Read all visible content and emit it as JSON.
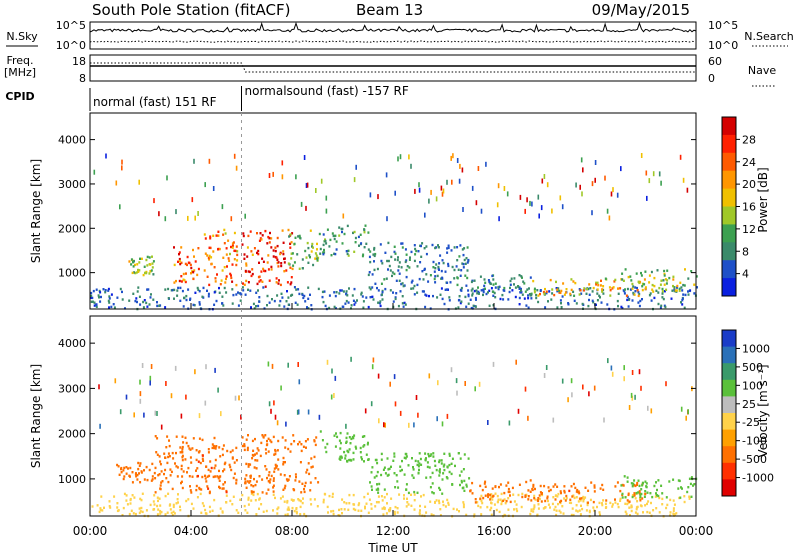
{
  "header": {
    "station": "South Pole Station (fitACF)",
    "beam": "Beam 13",
    "date": "09/May/2015"
  },
  "top_panels": {
    "nsky_label": "N.Sky",
    "nsearch_label": "N.Search",
    "noise_ticks": [
      "10^5",
      "10^0"
    ],
    "freq_label": "Freq.",
    "freq_unit": "[MHz]",
    "freq_ticks": [
      "18",
      "8"
    ],
    "nave_label": "Nave",
    "nave_ticks": [
      "60",
      "0"
    ],
    "cpid_label": "CPID",
    "cpid_segments": [
      {
        "text": "normal (fast) 151 RF",
        "start_hour": 0,
        "end_hour": 6
      },
      {
        "text": "normalsound (fast) -157 RF",
        "start_hour": 6,
        "end_hour": 24
      }
    ]
  },
  "colorbars": {
    "power": {
      "label": "Power [dB]",
      "ticks": [
        "28",
        "24",
        "20",
        "16",
        "12",
        "8",
        "4"
      ],
      "colors": [
        "#d40000",
        "#ff2000",
        "#ff5a00",
        "#ff9600",
        "#f0c000",
        "#a0c828",
        "#3ca050",
        "#3a8a6a",
        "#1e50c8",
        "#0a20e0"
      ]
    },
    "velocity": {
      "label": "Velocity [m s⁻¹]",
      "ticks": [
        "1000",
        "500",
        "100",
        "25",
        "-25",
        "-100",
        "-500",
        "-1000"
      ],
      "colors": [
        "#1a3cc8",
        "#2a70b8",
        "#3a9a6a",
        "#5ac03a",
        "#bdbdbd",
        "#ffd24a",
        "#ffa000",
        "#ff7000",
        "#ff3000",
        "#e00000"
      ]
    }
  },
  "x_axis": {
    "label": "Time UT",
    "ticks": [
      "00:00",
      "04:00",
      "08:00",
      "12:00",
      "16:00",
      "20:00",
      "00:00"
    ]
  },
  "chart_data": [
    {
      "type": "heatmap",
      "title": "Power",
      "ylabel": "Slant Range [km]",
      "xlabel": "Time UT",
      "xlim_hours": [
        0,
        24
      ],
      "ylim": [
        180,
        4600
      ],
      "y_ticks": [
        1000,
        2000,
        3000,
        4000
      ],
      "colorbar_label": "Power [dB]",
      "scatter_features": [
        {
          "start_hour": 0.0,
          "end_hour": 24.0,
          "range_min": 200,
          "range_max": 700,
          "value": 6
        },
        {
          "start_hour": 1.5,
          "end_hour": 2.5,
          "range_min": 950,
          "range_max": 1400,
          "value": 14
        },
        {
          "start_hour": 3.2,
          "end_hour": 4.3,
          "range_min": 800,
          "range_max": 1600,
          "value": 26
        },
        {
          "start_hour": 4.5,
          "end_hour": 5.8,
          "range_min": 700,
          "range_max": 2000,
          "value": 22
        },
        {
          "start_hour": 6.0,
          "end_hour": 8.0,
          "range_min": 700,
          "range_max": 2000,
          "value": 28
        },
        {
          "start_hour": 7.8,
          "end_hour": 9.0,
          "range_min": 1100,
          "range_max": 2000,
          "value": 12
        },
        {
          "start_hour": 9.0,
          "end_hour": 11.0,
          "range_min": 1400,
          "range_max": 2100,
          "value": 10
        },
        {
          "start_hour": 11.0,
          "end_hour": 15.0,
          "range_min": 700,
          "range_max": 1700,
          "value": 7
        },
        {
          "start_hour": 15.0,
          "end_hour": 17.5,
          "range_min": 500,
          "range_max": 1000,
          "value": 8
        },
        {
          "start_hour": 17.5,
          "end_hour": 22.0,
          "range_min": 500,
          "range_max": 900,
          "value": 18
        },
        {
          "start_hour": 21.0,
          "end_hour": 24.0,
          "range_min": 600,
          "range_max": 1100,
          "value": 14
        }
      ]
    },
    {
      "type": "heatmap",
      "title": "Velocity",
      "ylabel": "Slant Range [km]",
      "xlabel": "Time UT",
      "xlim_hours": [
        0,
        24
      ],
      "ylim": [
        180,
        4600
      ],
      "y_ticks": [
        1000,
        2000,
        3000,
        4000
      ],
      "colorbar_label": "Velocity [m s⁻¹]",
      "scatter_features": [
        {
          "start_hour": 0.0,
          "end_hour": 24.0,
          "range_min": 200,
          "range_max": 700,
          "value": 10
        },
        {
          "start_hour": 1.0,
          "end_hour": 2.5,
          "range_min": 950,
          "range_max": 1400,
          "value": -300
        },
        {
          "start_hour": 2.5,
          "end_hour": 5.8,
          "range_min": 700,
          "range_max": 2000,
          "value": -400
        },
        {
          "start_hour": 6.0,
          "end_hour": 9.0,
          "range_min": 700,
          "range_max": 2000,
          "value": -300
        },
        {
          "start_hour": 9.0,
          "end_hour": 11.0,
          "range_min": 1400,
          "range_max": 2100,
          "value": 150
        },
        {
          "start_hour": 11.0,
          "end_hour": 15.0,
          "range_min": 700,
          "range_max": 1600,
          "value": 300
        },
        {
          "start_hour": 15.0,
          "end_hour": 17.5,
          "range_min": 500,
          "range_max": 1000,
          "value": -150
        },
        {
          "start_hour": 17.5,
          "end_hour": 22.0,
          "range_min": 500,
          "range_max": 950,
          "value": -400
        },
        {
          "start_hour": 21.0,
          "end_hour": 24.0,
          "range_min": 600,
          "range_max": 1100,
          "value": 400
        }
      ]
    }
  ]
}
